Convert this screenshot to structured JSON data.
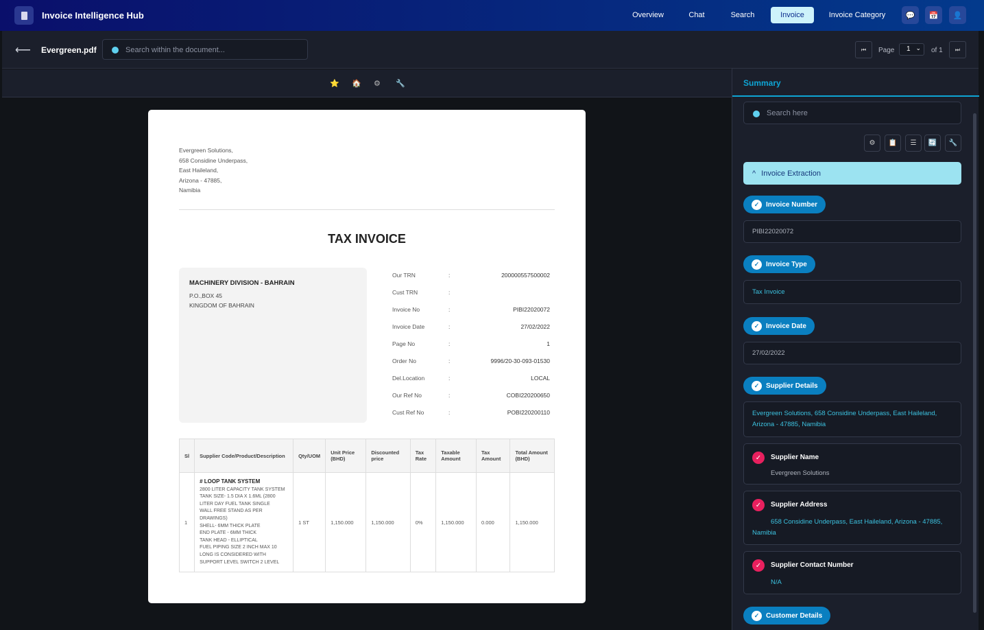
{
  "app": {
    "title": "Invoice Intelligence Hub",
    "nav": [
      "Overview",
      "Chat",
      "Search",
      "Invoice",
      "Invoice Category"
    ],
    "active_nav": "Invoice"
  },
  "doc": {
    "filename": "Evergreen.pdf",
    "search_placeholder": "Search within the document...",
    "page_label": "Page",
    "page_value": "1",
    "page_of": "of 1"
  },
  "invoice": {
    "supplier_address": [
      "Evergreen Solutions,",
      "658 Considine Underpass,",
      "East Haileland,",
      "Arizona - 47885,",
      "Namibia"
    ],
    "title": "TAX INVOICE",
    "customer": {
      "name": "MACHINERY DIVISION - BAHRAIN",
      "lines": [
        "P.O.,BOX 45",
        "KINGDOM OF BAHRAIN"
      ]
    },
    "meta": [
      {
        "k": "Our TRN",
        "v": "200000557500002"
      },
      {
        "k": "Cust TRN",
        "v": ""
      },
      {
        "k": "Invoice No",
        "v": "PIBI22020072"
      },
      {
        "k": "Invoice Date",
        "v": "27/02/2022"
      },
      {
        "k": "Page No",
        "v": "1"
      },
      {
        "k": "Order No",
        "v": "9996/20-30-093-01530"
      },
      {
        "k": "Del.Location",
        "v": "LOCAL"
      },
      {
        "k": "Our Ref No",
        "v": "COBI220200650"
      },
      {
        "k": "Cust Ref No",
        "v": "POBI220200110"
      }
    ],
    "colon": ":",
    "columns": [
      "Sl",
      "Supplier Code/Product/Description",
      "Qty/UOM",
      "Unit Price (BHD)",
      "Discounted price",
      "Tax Rate",
      "Taxable Amount",
      "Tax Amount",
      "Total Amount (BHD)"
    ],
    "row": {
      "sl": "1",
      "title": "# LOOP TANK SYSTEM",
      "desc": [
        "2800 LITER CAPACITY TANK SYSTEM",
        "TANK SIZE- 1.5 DIA X 1.6ML (2800",
        "LITER DAY FUEL TANK SINGLE",
        "WALL FREE STAND AS PER",
        "DRAWINGS)",
        "SHELL- 6MM THICK PLATE",
        "END PLATE - 6MM THICK",
        "TANK HEAD - ELLIPTICAL",
        "FUEL PIPING SIZE 2 INCH MAX 10",
        "LONG IS CONSIDERED WITH",
        "SUPPORT LEVEL SWITCH 2 LEVEL"
      ],
      "qty": "1 ST",
      "unit": "1,150.000",
      "disc": "1,150.000",
      "rate": "0%",
      "taxable": "1,150.000",
      "tax": "0.000",
      "total": "1,150.000"
    }
  },
  "summary": {
    "tab": "Summary",
    "search_placeholder": "Search here",
    "section": "Invoice Extraction",
    "fields": [
      {
        "label": "Invoice Number",
        "value": "PIBI22020072"
      },
      {
        "label": "Invoice Type",
        "value": "Tax Invoice"
      },
      {
        "label": "Invoice Date",
        "value": "27/02/2022"
      },
      {
        "label": "Supplier Details",
        "value": "Evergreen Solutions, 658 Considine Underpass, East Haileland, Arizona - 47885, Namibia"
      }
    ],
    "cards": [
      {
        "label": "Supplier Name",
        "value": "Evergreen Solutions"
      },
      {
        "label": "Supplier Address",
        "value": "658 Considine Underpass, East Haileland, Arizona - 47885, Namibia"
      },
      {
        "label": "Supplier Contact Number",
        "value": "N/A"
      }
    ],
    "next": "Customer Details"
  },
  "colors": {
    "accent": "#0ea5d5",
    "pill": "#0a7fc0",
    "pink": "#e8205e"
  }
}
